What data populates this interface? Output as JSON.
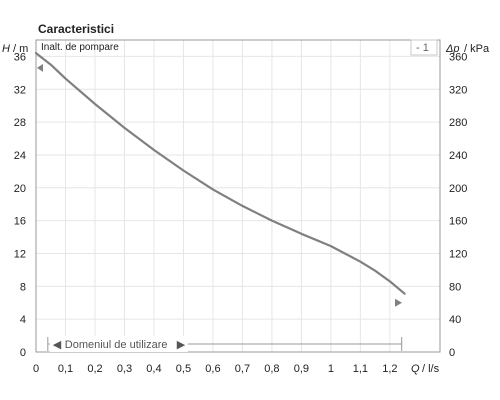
{
  "title": "Caracteristici",
  "curve_label": "Inalt. de pompare",
  "curve_selector": "- 1",
  "operating_range_label": "Domeniul de utilizare",
  "operating_range_left_arrow": "◀",
  "operating_range_right_arrow": "▶",
  "colors": {
    "curve": "#808080",
    "grid": "#e6e6e6",
    "axis": "#9a9a9a",
    "marker": "#808080"
  },
  "chart_data": {
    "type": "line",
    "title": "Caracteristici",
    "x_axis": {
      "label_symbol": "Q",
      "label_unit": "/ l/s",
      "range": [
        0,
        1.37
      ],
      "ticks": [
        0,
        0.1,
        0.2,
        0.3,
        0.4,
        0.5,
        0.6,
        0.7,
        0.8,
        0.9,
        1.0,
        1.1,
        1.2
      ],
      "tick_labels": [
        "0",
        "0,1",
        "0,2",
        "0,3",
        "0,4",
        "0,5",
        "0,6",
        "0,7",
        "0,8",
        "0,9",
        "1",
        "1,1",
        "1,2"
      ]
    },
    "y_axis_left": {
      "label_symbol": "H",
      "label_unit": "/ m",
      "range": [
        0,
        38
      ],
      "ticks": [
        0,
        4,
        8,
        12,
        16,
        20,
        24,
        28,
        32,
        36
      ],
      "tick_labels": [
        "0",
        "4",
        "8",
        "12",
        "16",
        "20",
        "24",
        "28",
        "32",
        "36"
      ]
    },
    "y_axis_right": {
      "label_symbol": "Δp",
      "label_unit": "/ kPa",
      "range": [
        0,
        380
      ],
      "ticks": [
        0,
        40,
        80,
        120,
        160,
        200,
        240,
        280,
        320,
        360
      ],
      "tick_labels": [
        "0",
        "40",
        "80",
        "120",
        "160",
        "200",
        "240",
        "280",
        "320",
        "360"
      ]
    },
    "grid": true,
    "series": [
      {
        "name": "Inalt. de pompare",
        "x": [
          0,
          0.05,
          0.1,
          0.2,
          0.3,
          0.4,
          0.5,
          0.6,
          0.7,
          0.8,
          0.9,
          1.0,
          1.1,
          1.15,
          1.2,
          1.25
        ],
        "y": [
          36.4,
          35.0,
          33.3,
          30.2,
          27.3,
          24.6,
          22.1,
          19.8,
          17.8,
          16.0,
          14.4,
          12.9,
          11.0,
          9.9,
          8.6,
          7.1
        ]
      }
    ],
    "operating_range": [
      0.04,
      1.24
    ],
    "markers": [
      {
        "side": "left",
        "y": 34.6
      },
      {
        "side": "right",
        "y": 6.0
      }
    ]
  }
}
